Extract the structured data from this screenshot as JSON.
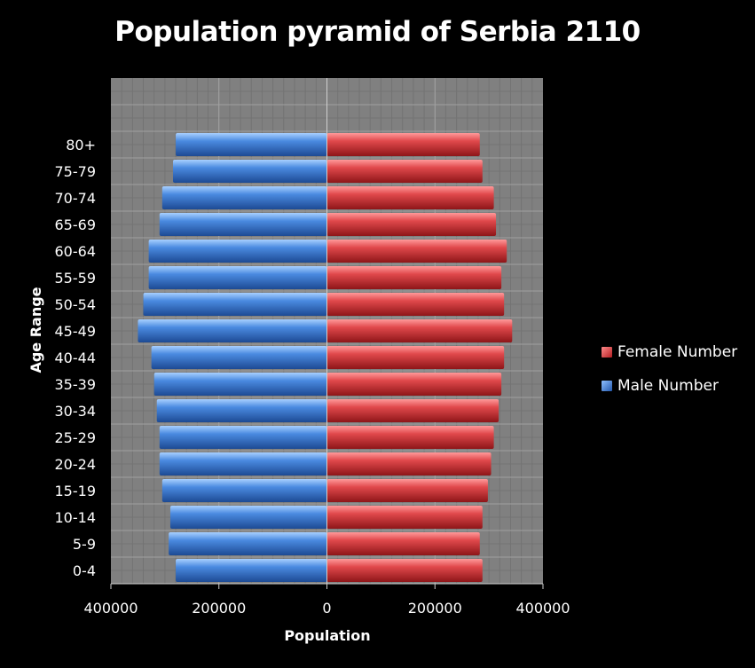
{
  "chart_data": {
    "type": "bar",
    "title": "Population pyramid of Serbia 2110",
    "xlabel": "Population",
    "ylabel": "Age Range",
    "xlim": [
      -400000,
      400000
    ],
    "x_ticks": [
      "400000",
      "200000",
      "0",
      "200000",
      "400000"
    ],
    "grid": true,
    "legend_position": "right",
    "categories": [
      "0-4",
      "5-9",
      "10-14",
      "15-19",
      "20-24",
      "25-29",
      "30-34",
      "35-39",
      "40-44",
      "45-49",
      "50-54",
      "55-59",
      "60-64",
      "65-69",
      "70-74",
      "75-79",
      "80+"
    ],
    "series": [
      {
        "name": "Female Number",
        "color": "#d0363a",
        "values": [
          288000,
          283000,
          288000,
          298000,
          304000,
          309000,
          318000,
          323000,
          328000,
          343000,
          328000,
          323000,
          333000,
          313000,
          309000,
          288000,
          283000
        ]
      },
      {
        "name": "Male Number",
        "color": "#3d7fd8",
        "values": [
          280000,
          293000,
          290000,
          305000,
          310000,
          310000,
          315000,
          320000,
          325000,
          350000,
          340000,
          330000,
          330000,
          310000,
          305000,
          285000,
          280000
        ]
      }
    ]
  }
}
